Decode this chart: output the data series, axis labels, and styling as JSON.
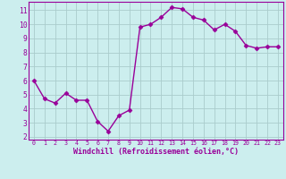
{
  "x": [
    0,
    1,
    2,
    3,
    4,
    5,
    6,
    7,
    8,
    9,
    10,
    11,
    12,
    13,
    14,
    15,
    16,
    17,
    18,
    19,
    20,
    21,
    22,
    23
  ],
  "y": [
    6.0,
    4.7,
    4.4,
    5.1,
    4.6,
    4.6,
    3.1,
    2.4,
    3.5,
    3.9,
    9.8,
    10.0,
    10.5,
    11.2,
    11.1,
    10.5,
    10.3,
    9.6,
    10.0,
    9.5,
    8.5,
    8.3,
    8.4,
    8.4
  ],
  "line_color": "#990099",
  "marker": "D",
  "marker_size": 2.5,
  "bg_color": "#cceeee",
  "grid_color": "#aacccc",
  "xlabel": "Windchill (Refroidissement éolien,°C)",
  "xlabel_color": "#990099",
  "tick_color": "#990099",
  "ylim": [
    1.8,
    11.6
  ],
  "yticks": [
    2,
    3,
    4,
    5,
    6,
    7,
    8,
    9,
    10,
    11
  ],
  "xlim": [
    -0.5,
    23.5
  ],
  "xticks": [
    0,
    1,
    2,
    3,
    4,
    5,
    6,
    7,
    8,
    9,
    10,
    11,
    12,
    13,
    14,
    15,
    16,
    17,
    18,
    19,
    20,
    21,
    22,
    23
  ],
  "linewidth": 1.0
}
